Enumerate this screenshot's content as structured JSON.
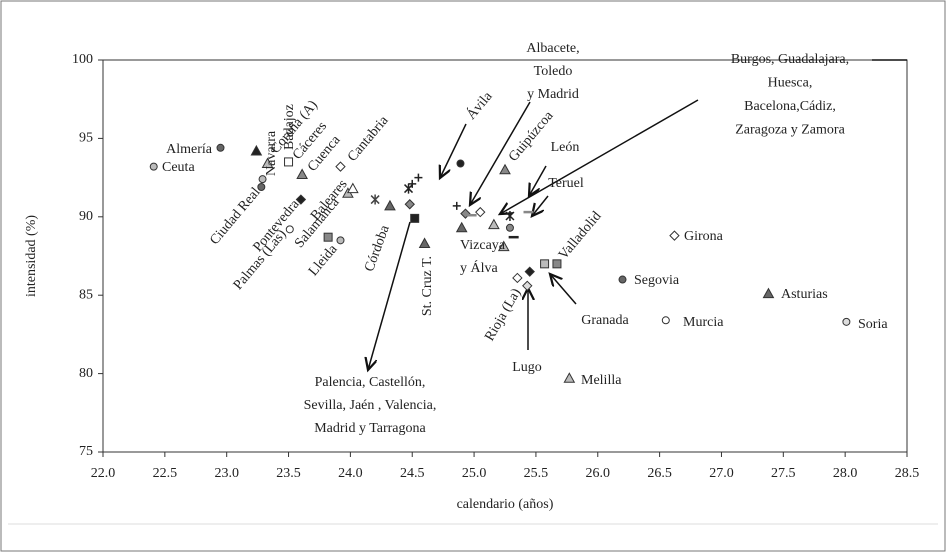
{
  "chart_data": {
    "type": "scatter",
    "x_label": "calendario (años)",
    "y_label": "intensidad (%)",
    "xlim": [
      22,
      28.5
    ],
    "ylim": [
      75,
      100
    ],
    "xticks": [
      {
        "value": 22,
        "label": "22.0"
      },
      22.5,
      {
        "value": 23,
        "label": "23.0"
      },
      23.5,
      {
        "value": 24,
        "label": "24.0"
      },
      24.5,
      {
        "value": 25,
        "label": "25.0"
      },
      25.5,
      {
        "value": 26,
        "label": "26.0"
      },
      26.5,
      {
        "value": 27,
        "label": "27.0"
      },
      27.5,
      {
        "value": 28,
        "label": "28.0"
      },
      28.5
    ],
    "yticks": [
      75,
      80,
      85,
      90,
      95,
      100
    ],
    "points": [
      {
        "x": 22.41,
        "y": 93.2,
        "marker": "circle",
        "color": "#bbb"
      },
      {
        "x": 22.95,
        "y": 94.4,
        "marker": "circle",
        "color": "#666"
      },
      {
        "x": 23.28,
        "y": 91.9,
        "marker": "circle",
        "color": "#666"
      },
      {
        "x": 23.29,
        "y": 92.4,
        "marker": "circle",
        "color": "#bbb"
      },
      {
        "x": 23.24,
        "y": 94.2,
        "marker": "triangle",
        "color": "#222"
      },
      {
        "x": 23.33,
        "y": 93.4,
        "marker": "triangle",
        "color": "#bbb"
      },
      {
        "x": 23.6,
        "y": 91.1,
        "marker": "diamond",
        "color": "#222"
      },
      {
        "x": 23.51,
        "y": 89.2,
        "marker": "circle",
        "color": "#fff"
      },
      {
        "x": 23.5,
        "y": 93.5,
        "marker": "square",
        "color": "#fff"
      },
      {
        "x": 23.61,
        "y": 92.7,
        "marker": "triangle",
        "color": "#888"
      },
      {
        "x": 23.92,
        "y": 93.2,
        "marker": "diamond",
        "color": "#fff"
      },
      {
        "x": 23.98,
        "y": 91.5,
        "marker": "triangle",
        "color": "#bbb"
      },
      {
        "x": 24.02,
        "y": 91.8,
        "marker": "triangle",
        "color": "#fff"
      },
      {
        "x": 23.82,
        "y": 88.7,
        "marker": "square",
        "color": "#888"
      },
      {
        "x": 23.92,
        "y": 88.5,
        "marker": "circle",
        "color": "#bbb"
      },
      {
        "x": 24.2,
        "y": 91.1,
        "marker": "asterisk",
        "color": "#444"
      },
      {
        "x": 24.32,
        "y": 90.7,
        "marker": "triangle",
        "color": "#666"
      },
      {
        "x": 24.48,
        "y": 90.8,
        "marker": "diamond",
        "color": "#888"
      },
      {
        "x": 24.47,
        "y": 91.8,
        "marker": "asterisk",
        "color": "#222"
      },
      {
        "x": 24.5,
        "y": 92.1,
        "marker": "plus",
        "color": "#222"
      },
      {
        "x": 24.55,
        "y": 92.5,
        "marker": "plus",
        "color": "#222"
      },
      {
        "x": 24.52,
        "y": 89.9,
        "marker": "square",
        "color": "#222"
      },
      {
        "x": 24.6,
        "y": 88.3,
        "marker": "triangle",
        "color": "#666"
      },
      {
        "x": 24.89,
        "y": 93.4,
        "marker": "circle",
        "color": "#222"
      },
      {
        "x": 24.86,
        "y": 90.7,
        "marker": "plus",
        "color": "#222"
      },
      {
        "x": 24.93,
        "y": 90.2,
        "marker": "diamond",
        "color": "#888"
      },
      {
        "x": 24.98,
        "y": 90.1,
        "marker": "dash",
        "color": "#888"
      },
      {
        "x": 24.9,
        "y": 89.3,
        "marker": "triangle",
        "color": "#666"
      },
      {
        "x": 25.05,
        "y": 90.3,
        "marker": "diamond",
        "color": "#fff"
      },
      {
        "x": 25.16,
        "y": 89.5,
        "marker": "triangle",
        "color": "#bbb"
      },
      {
        "x": 25.25,
        "y": 93.0,
        "marker": "triangle",
        "color": "#888"
      },
      {
        "x": 25.24,
        "y": 88.1,
        "marker": "triangle",
        "color": "#bbb"
      },
      {
        "x": 25.29,
        "y": 89.3,
        "marker": "circle",
        "color": "#888"
      },
      {
        "x": 25.29,
        "y": 90.05,
        "marker": "asterisk",
        "color": "#222"
      },
      {
        "x": 25.32,
        "y": 88.7,
        "marker": "dash",
        "color": "#222"
      },
      {
        "x": 25.44,
        "y": 90.3,
        "marker": "dash",
        "color": "#888"
      },
      {
        "x": 25.35,
        "y": 86.1,
        "marker": "diamond",
        "color": "#fff"
      },
      {
        "x": 25.45,
        "y": 86.5,
        "marker": "diamond",
        "color": "#222"
      },
      {
        "x": 25.43,
        "y": 85.6,
        "marker": "diamond",
        "color": "#ddd"
      },
      {
        "x": 25.57,
        "y": 87.0,
        "marker": "square",
        "color": "#bbb"
      },
      {
        "x": 25.67,
        "y": 87.0,
        "marker": "square",
        "color": "#888"
      },
      {
        "x": 25.77,
        "y": 79.7,
        "marker": "triangle",
        "color": "#bbb"
      },
      {
        "x": 26.62,
        "y": 88.8,
        "marker": "diamond",
        "color": "#fff"
      },
      {
        "x": 26.2,
        "y": 86.0,
        "marker": "circle",
        "color": "#666"
      },
      {
        "x": 26.55,
        "y": 83.4,
        "marker": "circle",
        "color": "#fff"
      },
      {
        "x": 27.38,
        "y": 85.1,
        "marker": "triangle",
        "color": "#666"
      },
      {
        "x": 28.01,
        "y": 83.3,
        "marker": "circle",
        "color": "#ddd"
      }
    ],
    "annotations": [
      [
        "Ceuta"
      ],
      [
        "Almería"
      ],
      [
        "Ciudad Real"
      ],
      [
        "Navarra"
      ],
      [
        "Badajoz"
      ],
      [
        "Coruña (A)"
      ],
      [
        "Pontevedra"
      ],
      [
        "Cáceres"
      ],
      [
        "Cuenca"
      ],
      [
        "Cantabria"
      ],
      [
        "Palmas (Las)"
      ],
      [
        "Salamanca"
      ],
      [
        "Baleares"
      ],
      [
        "Lleida"
      ],
      [
        "Córdoba"
      ],
      [
        "St. Cruz T."
      ],
      [
        "Ávila"
      ],
      [
        "Albacete,",
        "Toledo",
        "y Madrid"
      ],
      [
        "Guipúzcoa"
      ],
      [
        "León"
      ],
      [
        "Teruel"
      ],
      [
        "Vizcaya",
        "y Álva"
      ],
      [
        "Rioja (La)"
      ],
      [
        "Lugo"
      ],
      [
        "Granada"
      ],
      [
        "Valladolid"
      ],
      [
        "Melilla"
      ],
      [
        "Girona"
      ],
      [
        "Segovia"
      ],
      [
        "Murcia"
      ],
      [
        "Asturias"
      ],
      [
        "Soria"
      ],
      [
        "Palencia, Castellón,",
        "Sevilla, Jaén , Valencia,",
        "Madrid y Tarragona"
      ],
      [
        "Burgos, Guadalajara,",
        "Huesca,",
        "Bacelona,Cádiz,",
        "Zaragoza y Zamora"
      ]
    ]
  }
}
